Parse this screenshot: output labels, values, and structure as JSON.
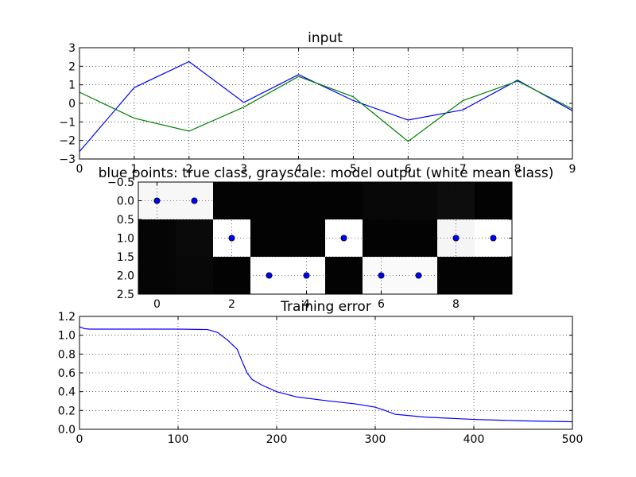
{
  "chart_data": [
    {
      "type": "line",
      "title": "input",
      "xlabel": "",
      "ylabel": "",
      "xlim": [
        0,
        9
      ],
      "ylim": [
        -3,
        3
      ],
      "xticks": [
        0,
        1,
        2,
        3,
        4,
        5,
        6,
        7,
        8,
        9
      ],
      "yticks": [
        -3,
        -2,
        -1,
        0,
        1,
        2,
        3
      ],
      "ytick_labels": [
        "−3",
        "−2",
        "−1",
        "0",
        "1",
        "2",
        "3"
      ],
      "grid": true,
      "x": [
        0,
        1,
        2,
        3,
        4,
        5,
        6,
        7,
        8,
        9
      ],
      "series": [
        {
          "color": "#0000ff",
          "values": [
            -2.6,
            0.85,
            2.25,
            0.05,
            1.55,
            0.15,
            -0.9,
            -0.35,
            1.25,
            -0.4
          ]
        },
        {
          "color": "#008000",
          "values": [
            0.6,
            -0.8,
            -1.5,
            -0.2,
            1.45,
            0.35,
            -2.05,
            0.15,
            1.2,
            -0.3
          ]
        }
      ]
    },
    {
      "type": "heatmap",
      "title": "blue points: true class, grayscale: model output (white mean class)",
      "xlim": [
        -0.5,
        9.5
      ],
      "ylim": [
        2.5,
        -0.5
      ],
      "xticks": [
        0,
        2,
        4,
        6,
        8
      ],
      "yticks": [
        -0.5,
        0.0,
        0.5,
        1.0,
        1.5,
        2.0,
        2.5
      ],
      "ytick_labels": [
        "−0.5",
        "0.0",
        "0.5",
        "1.0",
        "1.5",
        "2.0",
        "2.5"
      ],
      "grid": true,
      "cells": [
        [
          0.97,
          0.97,
          0.01,
          0.01,
          0.01,
          0.01,
          0.03,
          0.03,
          0.05,
          0.01
        ],
        [
          0.02,
          0.04,
          1.0,
          0.01,
          0.01,
          1.0,
          0.01,
          0.01,
          0.96,
          1.0
        ],
        [
          0.02,
          0.03,
          0.01,
          1.0,
          1.0,
          0.01,
          0.98,
          0.98,
          0.01,
          0.01
        ]
      ],
      "points": [
        {
          "x": 0,
          "y": 0
        },
        {
          "x": 1,
          "y": 0
        },
        {
          "x": 2,
          "y": 1
        },
        {
          "x": 3,
          "y": 2
        },
        {
          "x": 4,
          "y": 2
        },
        {
          "x": 5,
          "y": 1
        },
        {
          "x": 6,
          "y": 2
        },
        {
          "x": 7,
          "y": 2
        },
        {
          "x": 8,
          "y": 1
        },
        {
          "x": 9,
          "y": 1
        }
      ],
      "point_color": "#0000ff"
    },
    {
      "type": "line",
      "title": "Training error",
      "xlabel": "",
      "ylabel": "",
      "xlim": [
        0,
        500
      ],
      "ylim": [
        0.0,
        1.2
      ],
      "xticks": [
        0,
        100,
        200,
        300,
        400,
        500
      ],
      "yticks": [
        0.0,
        0.2,
        0.4,
        0.6,
        0.8,
        1.0,
        1.2
      ],
      "ytick_labels": [
        "0.0",
        "0.2",
        "0.4",
        "0.6",
        "0.8",
        "1.0",
        "1.2"
      ],
      "grid": true,
      "x": [
        0,
        5,
        10,
        50,
        100,
        130,
        140,
        150,
        160,
        165,
        170,
        175,
        185,
        200,
        220,
        250,
        280,
        300,
        310,
        320,
        350,
        400,
        450,
        500
      ],
      "series": [
        {
          "color": "#0000ff",
          "values": [
            1.09,
            1.07,
            1.065,
            1.065,
            1.065,
            1.06,
            1.03,
            0.95,
            0.85,
            0.72,
            0.6,
            0.53,
            0.47,
            0.4,
            0.345,
            0.305,
            0.27,
            0.235,
            0.2,
            0.16,
            0.13,
            0.105,
            0.09,
            0.08
          ]
        }
      ]
    }
  ]
}
